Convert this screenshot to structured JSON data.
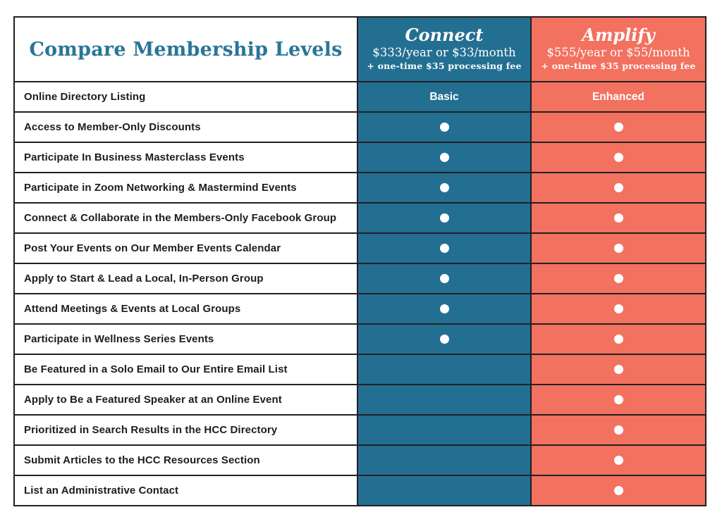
{
  "theme": {
    "teal": "#236F92",
    "coral": "#F2715F",
    "title": "#2A7598",
    "border": "#212121",
    "dot": "#FFFFFF"
  },
  "table": {
    "title": "Compare Membership Levels",
    "plans": [
      {
        "name": "Connect",
        "price": "$333/year or $33/month",
        "fee": "+ one-time $35 processing fee"
      },
      {
        "name": "Amplify",
        "price": "$555/year or $55/month",
        "fee": "+ one-time $35 processing fee"
      }
    ],
    "rows": [
      {
        "label": "Online Directory Listing",
        "connect": "Basic",
        "amplify": "Enhanced"
      },
      {
        "label": "Access to Member-Only Discounts",
        "connect": "included",
        "amplify": "included"
      },
      {
        "label": "Participate In Business Masterclass Events",
        "connect": "included",
        "amplify": "included"
      },
      {
        "label": "Participate in Zoom Networking & Mastermind Events",
        "connect": "included",
        "amplify": "included"
      },
      {
        "label": "Connect & Collaborate in the Members-Only Facebook Group",
        "connect": "included",
        "amplify": "included"
      },
      {
        "label": "Post Your Events on Our Member Events Calendar",
        "connect": "included",
        "amplify": "included"
      },
      {
        "label": "Apply to Start & Lead a Local, In-Person Group",
        "connect": "included",
        "amplify": "included"
      },
      {
        "label": "Attend Meetings & Events at Local Groups",
        "connect": "included",
        "amplify": "included"
      },
      {
        "label": "Participate in Wellness Series Events",
        "connect": "included",
        "amplify": "included"
      },
      {
        "label": "Be Featured in a Solo Email to Our Entire Email List",
        "connect": "",
        "amplify": "included"
      },
      {
        "label": "Apply to Be a Featured Speaker at an Online Event",
        "connect": "",
        "amplify": "included"
      },
      {
        "label": "Prioritized in Search Results in the HCC Directory",
        "connect": "",
        "amplify": "included"
      },
      {
        "label": "Submit Articles to the HCC Resources Section",
        "connect": "",
        "amplify": "included"
      },
      {
        "label": "List an Administrative Contact",
        "connect": "",
        "amplify": "included"
      }
    ]
  }
}
